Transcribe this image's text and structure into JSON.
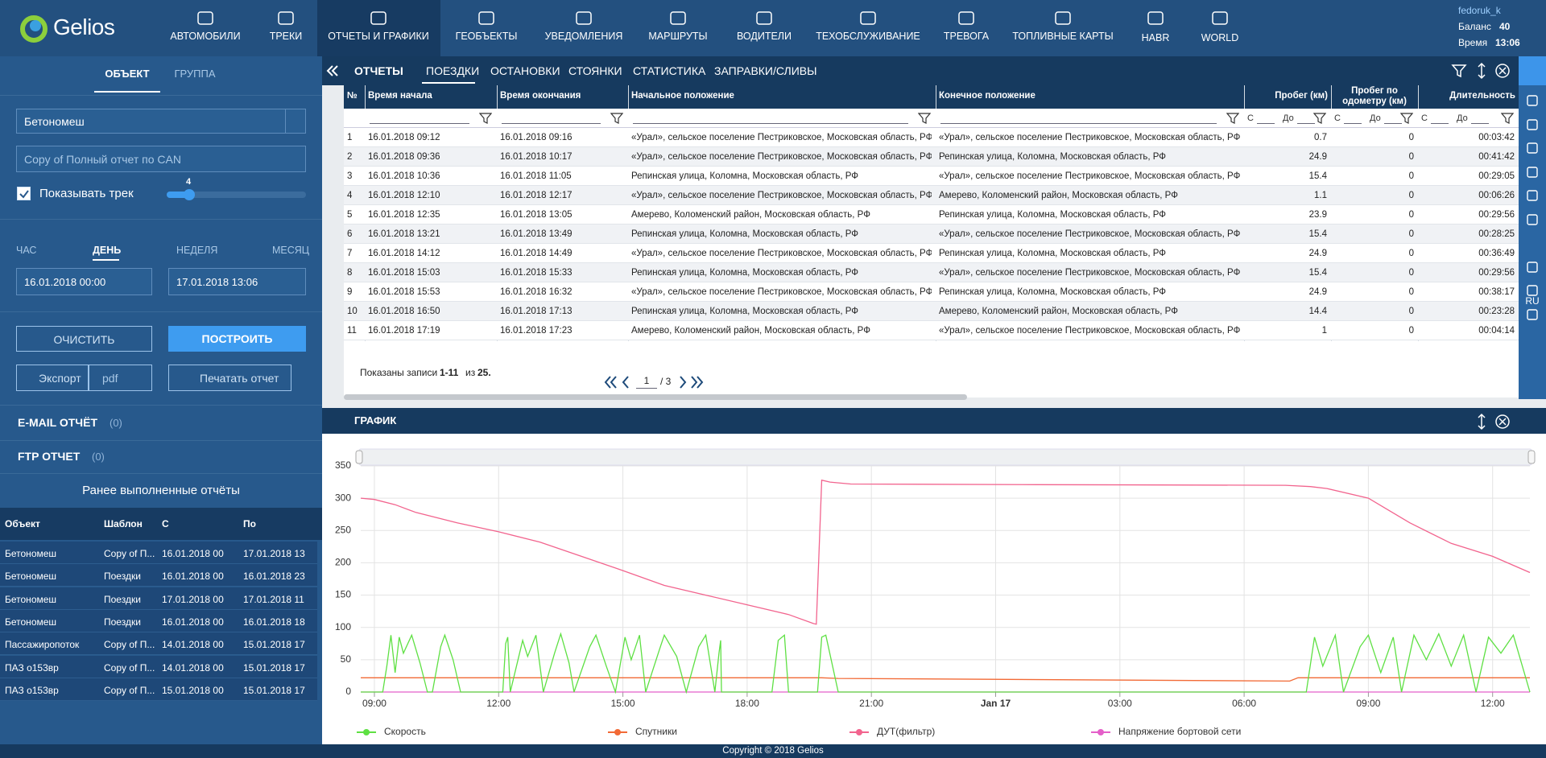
{
  "nav": {
    "logo": "Gelios",
    "items": [
      "АВТОМОБИЛИ",
      "ТРЕКИ",
      "ОТЧЕТЫ И ГРАФИКИ",
      "ГЕОБЪЕКТЫ",
      "УВЕДОМЛЕНИЯ",
      "МАРШРУТЫ",
      "ВОДИТЕЛИ",
      "ТЕХОБСЛУЖИВАНИЕ",
      "ТРЕВОГА",
      "ТОПЛИВНЫЕ КАРТЫ",
      "HABR",
      "WORLD"
    ],
    "user": "fedoruk_k",
    "balance_label": "Баланс",
    "balance": "40",
    "time_label": "Время",
    "time": "13:06"
  },
  "sidebar": {
    "tabs": [
      "ОБЪЕКТ",
      "ГРУППА"
    ],
    "object": "Бетономеш",
    "template": "Copy of Полный отчет по CAN",
    "show_track": "Показывать трек",
    "track_width": "4",
    "periods": [
      "ЧАС",
      "ДЕНЬ",
      "НЕДЕЛЯ",
      "МЕСЯЦ"
    ],
    "date_from": "16.01.2018 00:00",
    "date_to": "17.01.2018 13:06",
    "clear": "ОЧИСТИТЬ",
    "build": "ПОСТРОИТЬ",
    "export": "Экспорт",
    "format": "pdf",
    "print": "Печатать отчет",
    "email": "E-MAIL ОТЧЁТ",
    "email_count": "(0)",
    "ftp": "FTP ОТЧЕТ",
    "ftp_count": "(0)",
    "history_title": "Ранее выполненные отчёты",
    "history_headers": [
      "Объект",
      "Шаблон",
      "С",
      "По"
    ],
    "history_rows": [
      [
        "Бетономеш",
        "Copy of П...",
        "16.01.2018 00",
        "17.01.2018 13"
      ],
      [
        "Бетономеш",
        "Поездки",
        "16.01.2018 00",
        "16.01.2018 23"
      ],
      [
        "Бетономеш",
        "Поездки",
        "17.01.2018 00",
        "17.01.2018 11"
      ],
      [
        "Бетономеш",
        "Поездки",
        "16.01.2018 00",
        "16.01.2018 18"
      ],
      [
        "Пассажиропоток",
        "Copy of П...",
        "14.01.2018 00",
        "15.01.2018 17"
      ],
      [
        "ПАЗ о153вр",
        "Copy of П...",
        "14.01.2018 00",
        "15.01.2018 17"
      ],
      [
        "ПАЗ о153вр",
        "Copy of П...",
        "15.01.2018 00",
        "15.01.2018 17"
      ]
    ]
  },
  "report_tabs": [
    "ОТЧЕТЫ",
    "ПОЕЗДКИ",
    "ОСТАНОВКИ",
    "СТОЯНКИ",
    "СТАТИСТИКА",
    "ЗАПРАВКИ/СЛИВЫ"
  ],
  "side_lang": "RU",
  "table": {
    "headers": [
      "№",
      "Время начала",
      "Время окончания",
      "Начальное положение",
      "Конечное положение",
      "Пробег (км)",
      "Пробег по одометру (км)",
      "Длительность"
    ],
    "filter_from": "С",
    "filter_to": "До",
    "rows": [
      [
        1,
        "16.01.2018 09:12",
        "16.01.2018 09:16",
        "«Урал», сельское поселение Пестриковское, Московская область, РФ",
        "«Урал», сельское поселение Пестриковское, Московская область, РФ",
        0.7,
        0,
        "00:03:42"
      ],
      [
        2,
        "16.01.2018 09:36",
        "16.01.2018 10:17",
        "«Урал», сельское поселение Пестриковское, Московская область, РФ",
        "Репинская улица, Коломна, Московская область, РФ",
        24.9,
        0,
        "00:41:42"
      ],
      [
        3,
        "16.01.2018 10:36",
        "16.01.2018 11:05",
        "Репинская улица, Коломна, Московская область, РФ",
        "«Урал», сельское поселение Пестриковское, Московская область, РФ",
        15.4,
        0,
        "00:29:05"
      ],
      [
        4,
        "16.01.2018 12:10",
        "16.01.2018 12:17",
        "«Урал», сельское поселение Пестриковское, Московская область, РФ",
        "Амерево, Коломенский район, Московская область, РФ",
        1.1,
        0,
        "00:06:26"
      ],
      [
        5,
        "16.01.2018 12:35",
        "16.01.2018 13:05",
        "Амерево, Коломенский район, Московская область, РФ",
        "Репинская улица, Коломна, Московская область, РФ",
        23.9,
        0,
        "00:29:56"
      ],
      [
        6,
        "16.01.2018 13:21",
        "16.01.2018 13:49",
        "Репинская улица, Коломна, Московская область, РФ",
        "«Урал», сельское поселение Пестриковское, Московская область, РФ",
        15.4,
        0,
        "00:28:25"
      ],
      [
        7,
        "16.01.2018 14:12",
        "16.01.2018 14:49",
        "«Урал», сельское поселение Пестриковское, Московская область, РФ",
        "Репинская улица, Коломна, Московская область, РФ",
        24.9,
        0,
        "00:36:49"
      ],
      [
        8,
        "16.01.2018 15:03",
        "16.01.2018 15:33",
        "Репинская улица, Коломна, Московская область, РФ",
        "«Урал», сельское поселение Пестриковское, Московская область, РФ",
        15.4,
        0,
        "00:29:56"
      ],
      [
        9,
        "16.01.2018 15:53",
        "16.01.2018 16:32",
        "«Урал», сельское поселение Пестриковское, Московская область, РФ",
        "Репинская улица, Коломна, Московская область, РФ",
        24.9,
        0,
        "00:38:17"
      ],
      [
        10,
        "16.01.2018 16:50",
        "16.01.2018 17:13",
        "Репинская улица, Коломна, Московская область, РФ",
        "Амерево, Коломенский район, Московская область, РФ",
        14.4,
        0,
        "00:23:28"
      ],
      [
        11,
        "16.01.2018 17:19",
        "16.01.2018 17:23",
        "Амерево, Коломенский район, Московская область, РФ",
        "«Урал», сельское поселение Пестриковское, Московская область, РФ",
        1,
        0,
        "00:04:14"
      ]
    ]
  },
  "pager": {
    "shown": "Показаны записи",
    "range": "1-11",
    "of": "из",
    "total": "25.",
    "page": "1",
    "pages": "/ 3"
  },
  "chart_title": "ГРАФИК",
  "chart_data": {
    "type": "line",
    "xlim": [
      8.67,
      36.9
    ],
    "ylim": [
      0,
      350
    ],
    "yticks": [
      0,
      50,
      100,
      150,
      200,
      250,
      300,
      350
    ],
    "grid": true,
    "xticks": [
      {
        "value": 9,
        "label": "09:00"
      },
      {
        "value": 12,
        "label": "12:00"
      },
      {
        "value": 15,
        "label": "15:00"
      },
      {
        "value": 18,
        "label": "18:00"
      },
      {
        "value": 21,
        "label": "21:00"
      },
      {
        "value": 24,
        "label": "Jan 17"
      },
      {
        "value": 27,
        "label": "03:00"
      },
      {
        "value": 30,
        "label": "06:00"
      },
      {
        "value": 33,
        "label": "09:00"
      },
      {
        "value": 36,
        "label": "12:00"
      }
    ],
    "series": [
      {
        "name": "Скорость",
        "color": "#5ee043",
        "x": [
          8.67,
          9.2,
          9.3,
          9.4,
          9.5,
          9.6,
          9.7,
          9.9,
          10.1,
          10.28,
          10.4,
          10.6,
          10.7,
          10.9,
          11.08,
          12.1,
          12.17,
          12.22,
          12.28,
          12.58,
          12.7,
          12.9,
          13.08,
          13.35,
          13.5,
          13.7,
          13.82,
          14.2,
          14.35,
          14.6,
          14.82,
          15.05,
          15.2,
          15.4,
          15.55,
          15.88,
          16.0,
          16.3,
          16.53,
          16.83,
          17.0,
          17.22,
          17.32,
          17.36,
          17.38,
          18.6,
          18.75,
          18.9,
          19.0,
          19.7,
          19.8,
          19.9,
          20.2,
          31.5,
          31.7,
          31.9,
          32.2,
          32.4,
          32.8,
          33.0,
          33.3,
          33.6,
          33.8,
          34.1,
          34.4,
          34.7,
          35.0,
          35.3,
          35.6,
          35.9,
          36.2,
          36.5,
          36.9
        ],
        "values": [
          0,
          0,
          40,
          88,
          30,
          85,
          60,
          88,
          45,
          0,
          0,
          70,
          88,
          50,
          0,
          0,
          75,
          85,
          0,
          80,
          55,
          88,
          0,
          60,
          90,
          45,
          0,
          70,
          88,
          40,
          0,
          85,
          50,
          88,
          0,
          65,
          88,
          55,
          0,
          70,
          88,
          0,
          60,
          80,
          0,
          0,
          80,
          88,
          0,
          0,
          85,
          88,
          0,
          0,
          85,
          40,
          88,
          0,
          70,
          88,
          30,
          85,
          0,
          88,
          50,
          90,
          40,
          88,
          0,
          85,
          60,
          88,
          0
        ]
      },
      {
        "name": "Спутники",
        "color": "#f26a36",
        "x": [
          8.67,
          19.8,
          20.2,
          31.1,
          31.3,
          36.9
        ],
        "values": [
          22,
          22,
          21,
          17,
          22,
          22
        ]
      },
      {
        "name": "ДУТ(фильтр)",
        "color": "#f2648e",
        "x": [
          8.67,
          9,
          9.5,
          10,
          11,
          12,
          13,
          14,
          15,
          16,
          17,
          18,
          19,
          19.6,
          19.67,
          19.8,
          20,
          20.5,
          25,
          31,
          31.6,
          32,
          33,
          34,
          35,
          36,
          36.9
        ],
        "values": [
          300,
          298,
          290,
          278,
          262,
          248,
          232,
          210,
          188,
          165,
          150,
          135,
          120,
          106,
          105,
          328,
          325,
          322,
          321,
          320,
          318,
          315,
          300,
          262,
          230,
          210,
          185
        ]
      },
      {
        "name": "Напряжение бортовой сети",
        "color": "#e45fc9",
        "x": [
          8.67,
          36.9
        ],
        "values": [
          0,
          0
        ]
      }
    ]
  },
  "footer": "Copyright © 2018 Gelios"
}
